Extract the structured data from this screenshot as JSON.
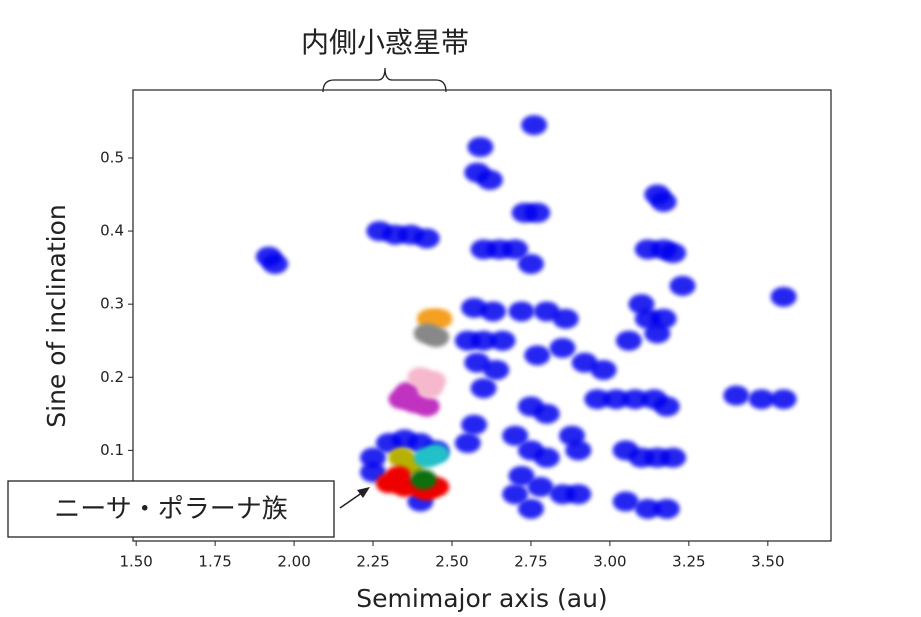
{
  "chart_data": {
    "type": "scatter",
    "x_label": "Semimajor axis (au)",
    "y_label": "Sine of inclination",
    "annotations": [
      "内側小惑星帯",
      "ニーサ・ポラーナ族"
    ],
    "xlim": [
      1.49,
      3.7
    ],
    "ylim": [
      -0.024,
      0.593
    ],
    "xticks": [
      {
        "value": 1.5,
        "label": "1.50"
      },
      {
        "value": 1.75,
        "label": "1.75"
      },
      {
        "value": 2.0,
        "label": "2.00"
      },
      {
        "value": 2.25,
        "label": "2.25"
      },
      {
        "value": 2.5,
        "label": "2.50"
      },
      {
        "value": 2.75,
        "label": "2.75"
      },
      {
        "value": 3.0,
        "label": "3.00"
      },
      {
        "value": 3.25,
        "label": "3.25"
      },
      {
        "value": 3.5,
        "label": "3.50"
      }
    ],
    "yticks": [
      0.1,
      0.2,
      0.3,
      0.4,
      0.5
    ],
    "series": [
      {
        "color": "#0000ee",
        "x": [
          1.92,
          1.94,
          2.27,
          2.32,
          2.37,
          2.42,
          2.25,
          2.3,
          2.35,
          2.4,
          2.45,
          2.25,
          2.4,
          2.59,
          2.58,
          2.62,
          2.6,
          2.65,
          2.7,
          2.57,
          2.63,
          2.55,
          2.6,
          2.66,
          2.58,
          2.64,
          2.6,
          2.57,
          2.55,
          2.73,
          2.77,
          2.75,
          2.72,
          2.8,
          2.86,
          2.77,
          2.85,
          2.75,
          2.8,
          2.7,
          2.75,
          2.8,
          2.72,
          2.78,
          2.7,
          2.9,
          2.85,
          2.75,
          2.88,
          2.9,
          2.92,
          2.98,
          2.96,
          3.02,
          3.08,
          3.14,
          3.18,
          3.06,
          3.12,
          3.17,
          3.1,
          3.15,
          3.15,
          3.17,
          3.12,
          3.17,
          3.2,
          3.05,
          3.1,
          3.15,
          3.2,
          3.05,
          3.12,
          3.18,
          3.23,
          3.4,
          3.48,
          3.55,
          3.55,
          2.76
        ],
        "y": [
          0.365,
          0.355,
          0.4,
          0.395,
          0.395,
          0.39,
          0.09,
          0.11,
          0.115,
          0.11,
          0.1,
          0.07,
          0.03,
          0.515,
          0.48,
          0.47,
          0.375,
          0.375,
          0.375,
          0.295,
          0.29,
          0.25,
          0.25,
          0.25,
          0.22,
          0.21,
          0.185,
          0.135,
          0.11,
          0.425,
          0.425,
          0.355,
          0.29,
          0.29,
          0.28,
          0.23,
          0.24,
          0.16,
          0.15,
          0.12,
          0.1,
          0.09,
          0.065,
          0.05,
          0.04,
          0.04,
          0.04,
          0.02,
          0.12,
          0.1,
          0.22,
          0.21,
          0.17,
          0.17,
          0.17,
          0.17,
          0.16,
          0.25,
          0.28,
          0.28,
          0.3,
          0.26,
          0.45,
          0.44,
          0.375,
          0.375,
          0.37,
          0.1,
          0.09,
          0.09,
          0.09,
          0.03,
          0.02,
          0.02,
          0.325,
          0.175,
          0.17,
          0.17,
          0.31,
          0.545
        ]
      },
      {
        "color": "#f5a020",
        "x": [
          2.43,
          2.46
        ],
        "y": [
          0.28,
          0.28
        ]
      },
      {
        "color": "#888888",
        "x": [
          2.42,
          2.45
        ],
        "y": [
          0.26,
          0.255
        ]
      },
      {
        "color": "#c030c0",
        "x": [
          2.34,
          2.38,
          2.42,
          2.36
        ],
        "y": [
          0.17,
          0.165,
          0.16,
          0.18
        ]
      },
      {
        "color": "#f6b8cc",
        "x": [
          2.4,
          2.44,
          2.43
        ],
        "y": [
          0.2,
          0.195,
          0.185
        ]
      },
      {
        "color": "#b8b000",
        "x": [
          2.34,
          2.37
        ],
        "y": [
          0.09,
          0.08
        ]
      },
      {
        "color": "#20c0c8",
        "x": [
          2.42,
          2.45
        ],
        "y": [
          0.09,
          0.095
        ]
      },
      {
        "color": "#ee0000",
        "x": [
          2.3,
          2.35,
          2.4,
          2.45,
          2.33,
          2.42
        ],
        "y": [
          0.055,
          0.05,
          0.05,
          0.05,
          0.065,
          0.045
        ]
      },
      {
        "color": "#107010",
        "x": [
          2.41
        ],
        "y": [
          0.06
        ]
      }
    ]
  }
}
